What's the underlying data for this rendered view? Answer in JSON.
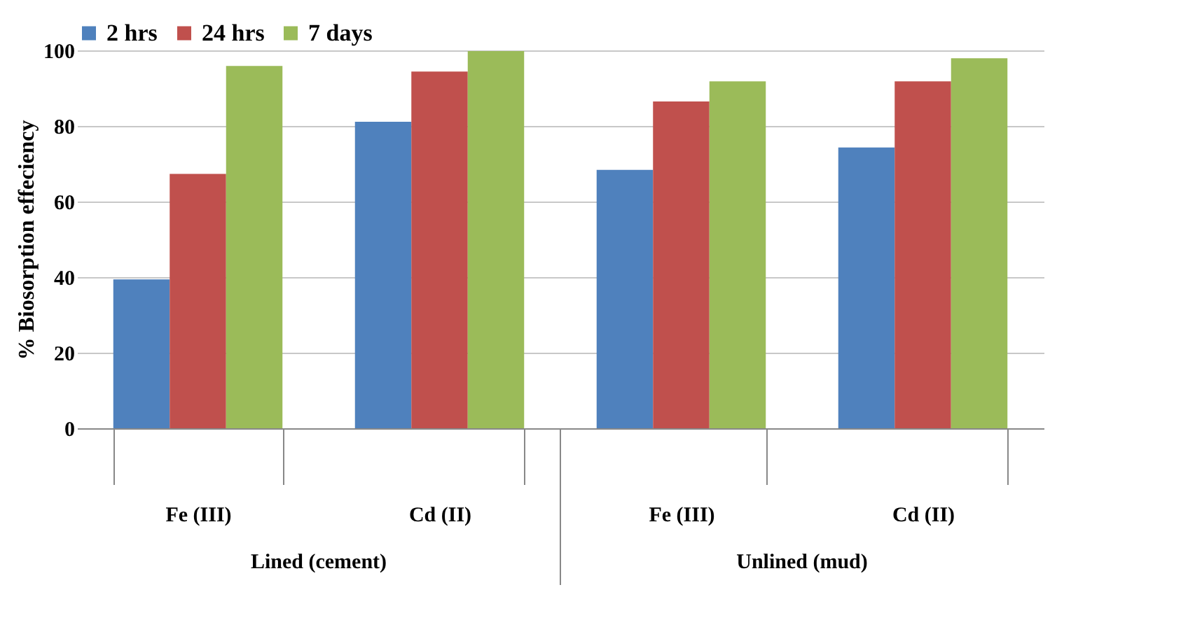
{
  "chart_data": {
    "type": "bar",
    "ylabel": "% Biosorption effeciency",
    "categories": [
      "Fe (III)",
      "Cd (II)",
      "Fe (III)",
      "Cd (II)"
    ],
    "series": [
      {
        "name": "2 hrs",
        "color": "#4f81bd",
        "values": [
          39.4,
          81.1,
          68.4,
          74.3
        ]
      },
      {
        "name": "24 hrs",
        "color": "#c0504d",
        "values": [
          67.3,
          94.4,
          86.5,
          91.8
        ]
      },
      {
        "name": "7 days",
        "color": "#9bbb59",
        "values": [
          95.9,
          99.8,
          91.8,
          97.9
        ]
      }
    ],
    "ylim": [
      0,
      100
    ],
    "yticks": [
      0,
      20,
      40,
      60,
      80,
      100
    ],
    "grid": "y",
    "legend": "top",
    "annotations": [
      "Lined (cement)",
      "Unlined (mud)"
    ]
  }
}
